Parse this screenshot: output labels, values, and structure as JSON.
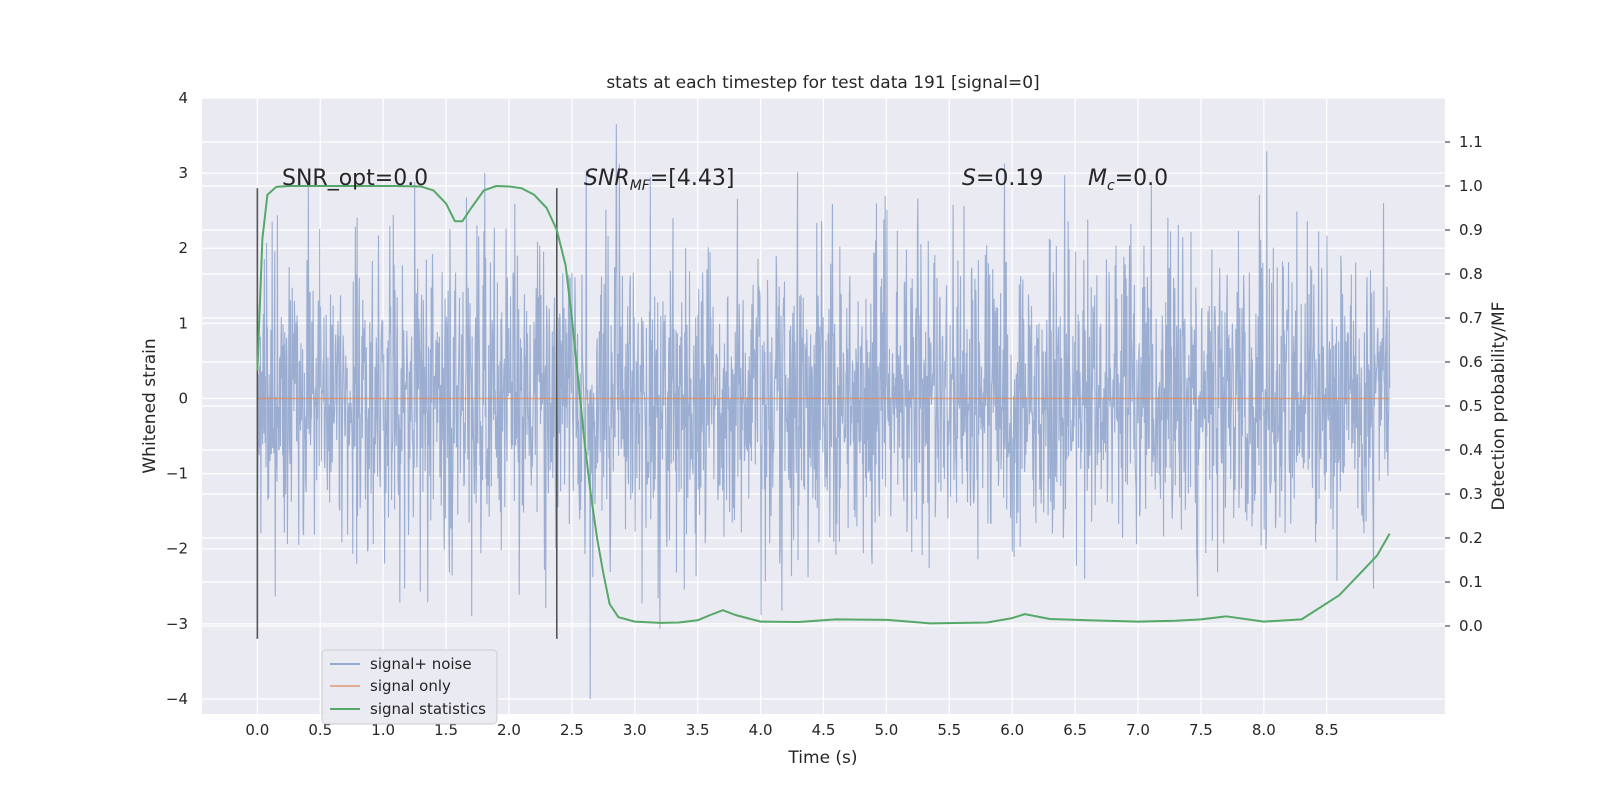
{
  "chart_data": {
    "type": "line",
    "title": "stats at each timestep for test data 191 [signal=0]",
    "xlabel": "Time (s)",
    "ylabel": "Whitened strain",
    "ylabel_right": "Detection probability/MF",
    "xlim": [
      -0.44,
      9.44
    ],
    "ylim": [
      -4.2,
      4.0
    ],
    "ylim_right": [
      -0.2,
      1.2
    ],
    "x_ticks": [
      "0.0",
      "0.5",
      "1.0",
      "1.5",
      "2.0",
      "2.5",
      "3.0",
      "3.5",
      "4.0",
      "4.5",
      "5.0",
      "5.5",
      "6.0",
      "6.5",
      "7.0",
      "7.5",
      "8.0",
      "8.5"
    ],
    "y_ticks": [
      "4",
      "3",
      "2",
      "1",
      "0",
      "−1",
      "−2",
      "−3",
      "−4"
    ],
    "y_ticks_right": [
      "1.1",
      "1.0",
      "0.9",
      "0.8",
      "0.7",
      "0.6",
      "0.5",
      "0.4",
      "0.3",
      "0.2",
      "0.1",
      "0.0"
    ],
    "grid": true,
    "colors": {
      "background": "#eaeaf2",
      "grid": "#ffffff",
      "noise": "#4c72b0",
      "signal_only": "#dd8452",
      "statistics": "#55a868",
      "marker": "#555555"
    },
    "legend": {
      "position": "lower-left",
      "entries": [
        "signal+ noise",
        "signal only",
        "signal statistics"
      ]
    },
    "annotations": {
      "snr_opt": "SNR_opt=0.0",
      "snr_mf_base": "SNR",
      "snr_mf_sub": "MF",
      "snr_mf_value": "=[4.43]",
      "s_base": "S",
      "s_value": "=0.19",
      "mc_base": "M",
      "mc_sub": "c",
      "mc_value": "=0.0"
    },
    "markers_x": [
      0.0,
      2.38
    ],
    "marker_y_range": [
      -3.2,
      2.8
    ],
    "series": [
      {
        "name": "signal+ noise",
        "axis": "left",
        "style": "dense-noise",
        "x_range": [
          0.0,
          9.0
        ],
        "typical_amplitude": 1.0,
        "min": -4.0,
        "max": 3.65
      },
      {
        "name": "signal only",
        "axis": "left",
        "x": [
          0.0,
          9.0
        ],
        "y": [
          0.0,
          0.0
        ]
      },
      {
        "name": "signal statistics",
        "axis": "right",
        "x": [
          0.0,
          0.04,
          0.08,
          0.15,
          0.25,
          0.35,
          0.5,
          0.7,
          0.9,
          1.1,
          1.3,
          1.4,
          1.5,
          1.57,
          1.63,
          1.7,
          1.8,
          1.9,
          2.0,
          2.1,
          2.2,
          2.3,
          2.38,
          2.45,
          2.5,
          2.55,
          2.6,
          2.65,
          2.7,
          2.75,
          2.8,
          2.87,
          3.0,
          3.2,
          3.35,
          3.5,
          3.6,
          3.7,
          3.8,
          4.0,
          4.3,
          4.6,
          5.0,
          5.35,
          5.8,
          6.0,
          6.1,
          6.3,
          6.6,
          7.0,
          7.3,
          7.5,
          7.7,
          8.0,
          8.3,
          8.6,
          8.8,
          8.9,
          9.0
        ],
        "y": [
          0.58,
          0.88,
          0.98,
          0.998,
          1.0,
          1.0,
          1.0,
          1.0,
          1.0,
          1.0,
          0.999,
          0.99,
          0.96,
          0.92,
          0.92,
          0.95,
          0.99,
          1.0,
          0.999,
          0.995,
          0.98,
          0.95,
          0.9,
          0.82,
          0.7,
          0.56,
          0.42,
          0.3,
          0.2,
          0.12,
          0.05,
          0.02,
          0.01,
          0.007,
          0.008,
          0.013,
          0.025,
          0.036,
          0.025,
          0.01,
          0.009,
          0.015,
          0.014,
          0.006,
          0.008,
          0.018,
          0.027,
          0.016,
          0.013,
          0.01,
          0.012,
          0.015,
          0.022,
          0.01,
          0.015,
          0.07,
          0.13,
          0.16,
          0.21
        ]
      }
    ]
  }
}
